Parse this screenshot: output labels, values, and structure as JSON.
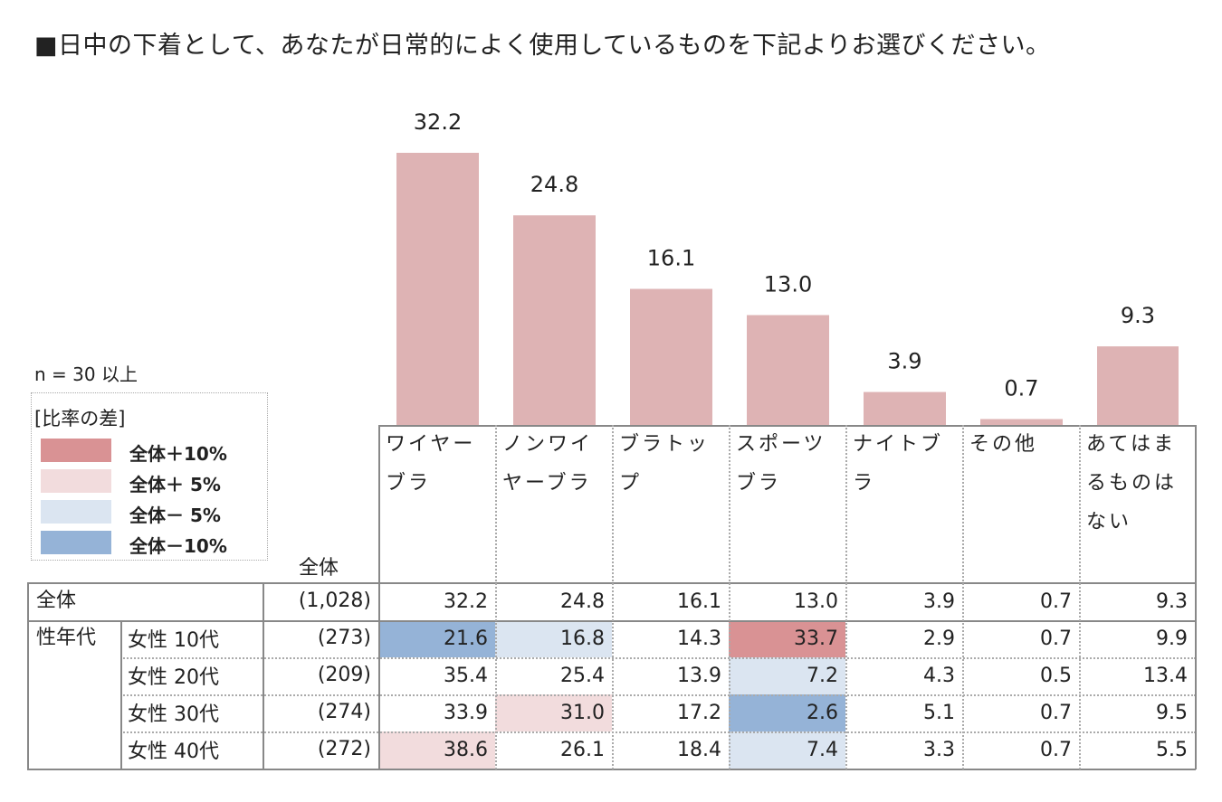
{
  "title": "■日中の下着として、あなたが日常的によく使用しているものを下記よりお選びください。",
  "sample_note": "n = 30 以上",
  "legend": {
    "title": "[比率の差]",
    "items": [
      {
        "label": "全体＋10%",
        "color": "#d99294"
      },
      {
        "label": "全体＋ 5%",
        "color": "#f2dcdd"
      },
      {
        "label": "全体－ 5%",
        "color": "#dbe5f1"
      },
      {
        "label": "全体－10%",
        "color": "#95b3d7"
      }
    ]
  },
  "colors": {
    "bar": "#deb3b4",
    "plus10": "#d99294",
    "plus5": "#f2dcdd",
    "minus5": "#dbe5f1",
    "minus10": "#95b3d7"
  },
  "chart_data": {
    "type": "bar",
    "title": "■日中の下着として、あなたが日常的によく使用しているものを下記よりお選びください。",
    "categories": [
      "ワイヤーブラ",
      "ノンワイヤーブラ",
      "ブラトップ",
      "スポーツブラ",
      "ナイトブラ",
      "その他",
      "あてはまるものはない"
    ],
    "values": [
      32.2,
      24.8,
      16.1,
      13.0,
      3.9,
      0.7,
      9.3
    ],
    "value_labels": [
      "32.2",
      "24.8",
      "16.1",
      "13.0",
      "3.9",
      "0.7",
      "9.3"
    ],
    "ylim": [
      0,
      32.2
    ]
  },
  "table": {
    "total_header": "全体",
    "category_lines": [
      [
        "ワイヤー",
        "ブラ"
      ],
      [
        "ノンワイ",
        "ヤーブラ"
      ],
      [
        "ブラトッ",
        "プ"
      ],
      [
        "スポーツ",
        "ブラ"
      ],
      [
        "ナイトブ",
        "ラ"
      ],
      [
        "その他"
      ],
      [
        "あてはま",
        "るものは",
        "ない"
      ]
    ],
    "rows": [
      {
        "group": "全体",
        "label": "",
        "n": "(1,028)",
        "values": [
          "32.2",
          "24.8",
          "16.1",
          "13.0",
          "3.9",
          "0.7",
          "9.3"
        ],
        "highlights": [
          "",
          "",
          "",
          "",
          "",
          "",
          ""
        ]
      },
      {
        "group": "性年代",
        "label": "女性 10代",
        "n": "(273)",
        "values": [
          "21.6",
          "16.8",
          "14.3",
          "33.7",
          "2.9",
          "0.7",
          "9.9"
        ],
        "highlights": [
          "minus10",
          "minus5",
          "",
          "plus10",
          "",
          "",
          ""
        ]
      },
      {
        "group": "",
        "label": "女性 20代",
        "n": "(209)",
        "values": [
          "35.4",
          "25.4",
          "13.9",
          "7.2",
          "4.3",
          "0.5",
          "13.4"
        ],
        "highlights": [
          "",
          "",
          "",
          "minus5",
          "",
          "",
          ""
        ]
      },
      {
        "group": "",
        "label": "女性 30代",
        "n": "(274)",
        "values": [
          "33.9",
          "31.0",
          "17.2",
          "2.6",
          "5.1",
          "0.7",
          "9.5"
        ],
        "highlights": [
          "",
          "plus5",
          "",
          "minus10",
          "",
          "",
          ""
        ]
      },
      {
        "group": "",
        "label": "女性 40代",
        "n": "(272)",
        "values": [
          "38.6",
          "26.1",
          "18.4",
          "7.4",
          "3.3",
          "0.7",
          "5.5"
        ],
        "highlights": [
          "plus5",
          "",
          "",
          "minus5",
          "",
          "",
          ""
        ]
      }
    ]
  }
}
